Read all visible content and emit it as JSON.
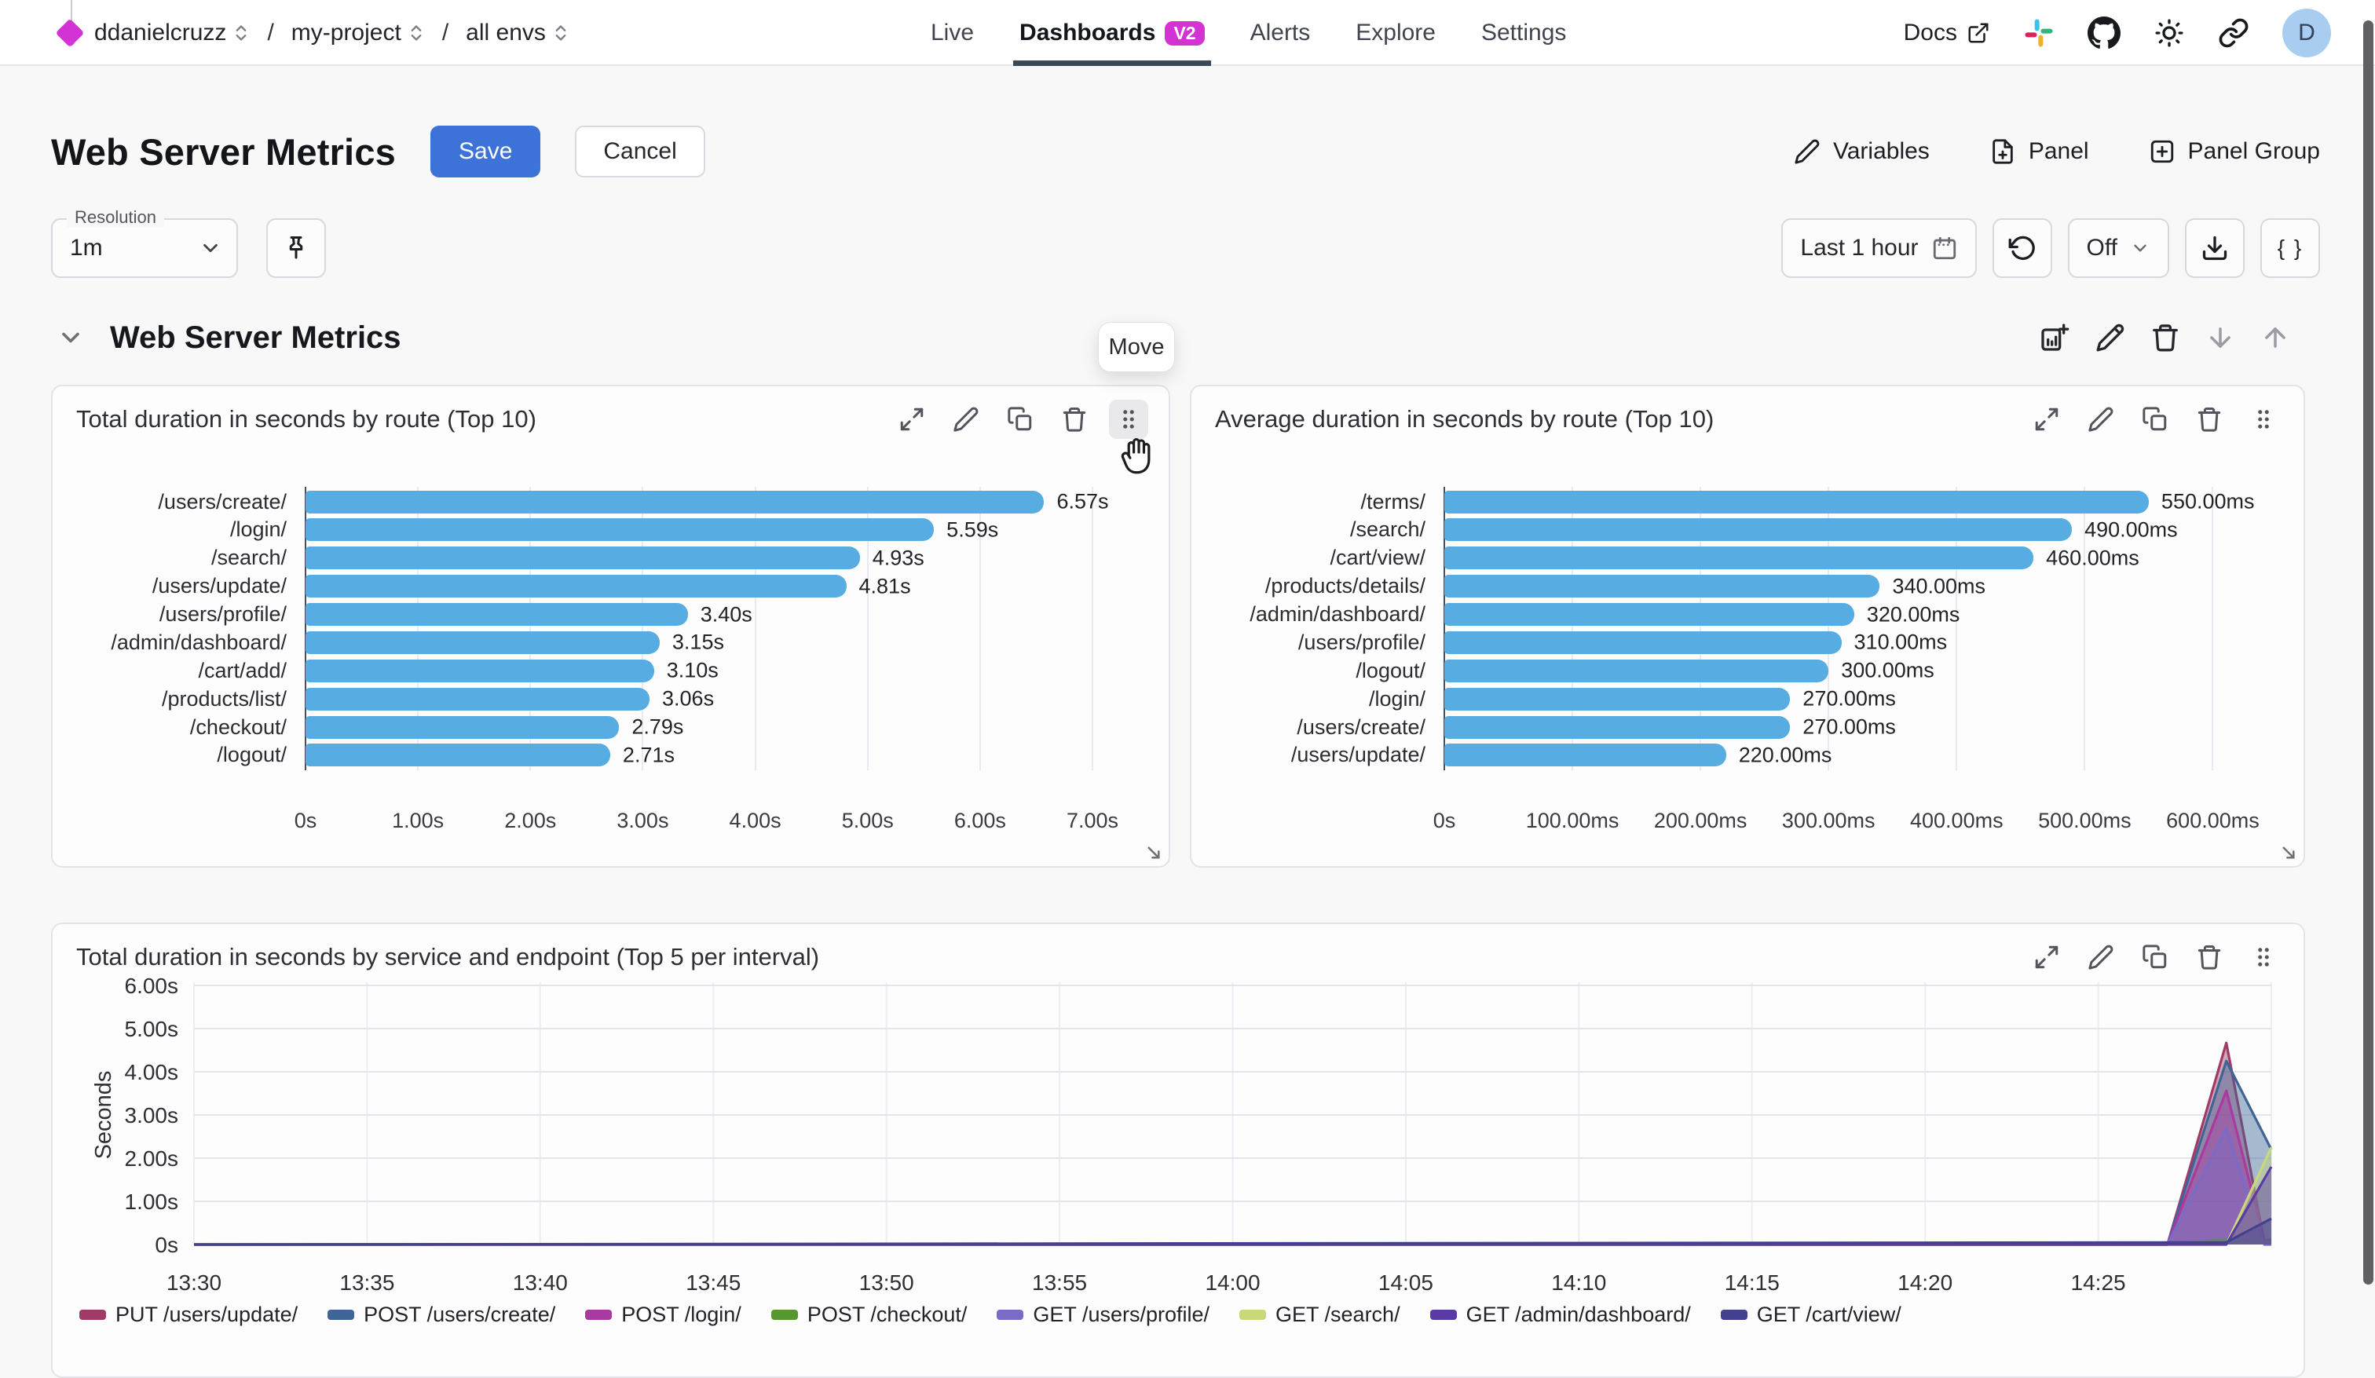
{
  "topbar": {
    "org": "ddanielcruzz",
    "sep1": "/",
    "project": "my-project",
    "sep2": "/",
    "env": "all envs",
    "nav": [
      {
        "label": "Live"
      },
      {
        "label": "Dashboards",
        "badge": "V2"
      },
      {
        "label": "Alerts"
      },
      {
        "label": "Explore"
      },
      {
        "label": "Settings"
      }
    ],
    "docs_label": "Docs",
    "avatar_initial": "D"
  },
  "header": {
    "title": "Web Server Metrics",
    "save_label": "Save",
    "cancel_label": "Cancel",
    "variables_label": "Variables",
    "panel_label": "Panel",
    "panel_group_label": "Panel Group"
  },
  "controls": {
    "resolution_label": "Resolution",
    "resolution_value": "1m",
    "time_range_label": "Last 1 hour",
    "auto_refresh_value": "Off",
    "braces_label": "{ }"
  },
  "group": {
    "title": "Web Server Metrics",
    "move_tooltip": "Move"
  },
  "chart_data": [
    {
      "type": "bar",
      "orientation": "horizontal",
      "title": "Total duration in seconds by route (Top 10)",
      "unit": "seconds",
      "bar_color": "#57ace1",
      "categories": [
        "/users/create/",
        "/login/",
        "/search/",
        "/users/update/",
        "/users/profile/",
        "/admin/dashboard/",
        "/cart/add/",
        "/products/list/",
        "/checkout/",
        "/logout/"
      ],
      "values": [
        6.57,
        5.59,
        4.93,
        4.81,
        3.4,
        3.15,
        3.1,
        3.06,
        2.79,
        2.71
      ],
      "value_labels": [
        "6.57s",
        "5.59s",
        "4.93s",
        "4.81s",
        "3.40s",
        "3.15s",
        "3.10s",
        "3.06s",
        "2.79s",
        "2.71s"
      ],
      "x_tick_labels": [
        "0s",
        "1.00s",
        "2.00s",
        "3.00s",
        "4.00s",
        "5.00s",
        "6.00s",
        "7.00s"
      ],
      "x_tick_values": [
        0,
        1,
        2,
        3,
        4,
        5,
        6,
        7
      ],
      "x_max": 7.44
    },
    {
      "type": "bar",
      "orientation": "horizontal",
      "title": "Average duration in seconds by route (Top 10)",
      "unit": "milliseconds",
      "bar_color": "#57ace1",
      "categories": [
        "/terms/",
        "/search/",
        "/cart/view/",
        "/products/details/",
        "/admin/dashboard/",
        "/users/profile/",
        "/logout/",
        "/login/",
        "/users/create/",
        "/users/update/"
      ],
      "values": [
        550,
        490,
        460,
        340,
        320,
        310,
        300,
        270,
        270,
        220
      ],
      "value_labels": [
        "550.00ms",
        "490.00ms",
        "460.00ms",
        "340.00ms",
        "320.00ms",
        "310.00ms",
        "300.00ms",
        "270.00ms",
        "270.00ms",
        "220.00ms"
      ],
      "x_tick_labels": [
        "0s",
        "100.00ms",
        "200.00ms",
        "300.00ms",
        "400.00ms",
        "500.00ms",
        "600.00ms"
      ],
      "x_tick_values": [
        0,
        100,
        200,
        300,
        400,
        500,
        600
      ],
      "x_max": 650
    },
    {
      "type": "area",
      "title": "Total duration in seconds by service and endpoint (Top 5 per interval)",
      "ylabel": "Seconds",
      "ylim": [
        0,
        6
      ],
      "y_tick_labels": [
        "0s",
        "1.00s",
        "2.00s",
        "3.00s",
        "4.00s",
        "5.00s",
        "6.00s"
      ],
      "y_tick_values": [
        0,
        1,
        2,
        3,
        4,
        5,
        6
      ],
      "x_tick_labels": [
        "13:30",
        "13:35",
        "13:40",
        "13:45",
        "13:50",
        "13:55",
        "14:00",
        "14:05",
        "14:10",
        "14:15",
        "14:20",
        "14:25"
      ],
      "x_tick_minutes": [
        0,
        5,
        10,
        15,
        20,
        25,
        30,
        35,
        40,
        45,
        50,
        55
      ],
      "x_domain_minutes": [
        0,
        60
      ],
      "legend_position": "bottom",
      "series": [
        {
          "name": "PUT /users/update/",
          "color": "#a03a66",
          "points_min_sec": [
            [
              0,
              0
            ],
            [
              57,
              0
            ],
            [
              58.7,
              4.67
            ],
            [
              59.8,
              0.05
            ],
            [
              60,
              0.05
            ]
          ]
        },
        {
          "name": "POST /users/create/",
          "color": "#3e6596",
          "points_min_sec": [
            [
              0,
              0
            ],
            [
              57,
              0
            ],
            [
              58.7,
              4.25
            ],
            [
              60,
              2.2
            ]
          ]
        },
        {
          "name": "POST /login/",
          "color": "#a83aa0",
          "points_min_sec": [
            [
              0,
              0
            ],
            [
              57,
              0
            ],
            [
              58.7,
              3.56
            ],
            [
              59.8,
              0.1
            ],
            [
              60,
              0.1
            ]
          ]
        },
        {
          "name": "POST /checkout/",
          "color": "#55982f",
          "points_min_sec": [
            [
              0,
              0
            ],
            [
              57,
              0
            ],
            [
              58.7,
              0.12
            ],
            [
              60,
              0.05
            ]
          ]
        },
        {
          "name": "GET /users/profile/",
          "color": "#7a6bc8",
          "points_min_sec": [
            [
              0,
              0
            ],
            [
              57,
              0
            ],
            [
              58.7,
              2.7
            ],
            [
              59.8,
              0
            ],
            [
              60,
              0
            ]
          ]
        },
        {
          "name": "GET /search/",
          "color": "#c9d97a",
          "points_min_sec": [
            [
              0,
              0
            ],
            [
              58.7,
              0
            ],
            [
              60,
              2.25
            ]
          ]
        },
        {
          "name": "GET /admin/dashboard/",
          "color": "#5a3ba5",
          "points_min_sec": [
            [
              0,
              0
            ],
            [
              58.7,
              0
            ],
            [
              60,
              1.8
            ]
          ]
        },
        {
          "name": "GET /cart/view/",
          "color": "#43418f",
          "points_min_sec": [
            [
              0,
              0
            ],
            [
              58.7,
              0.05
            ],
            [
              60,
              0.6
            ]
          ]
        }
      ]
    }
  ]
}
